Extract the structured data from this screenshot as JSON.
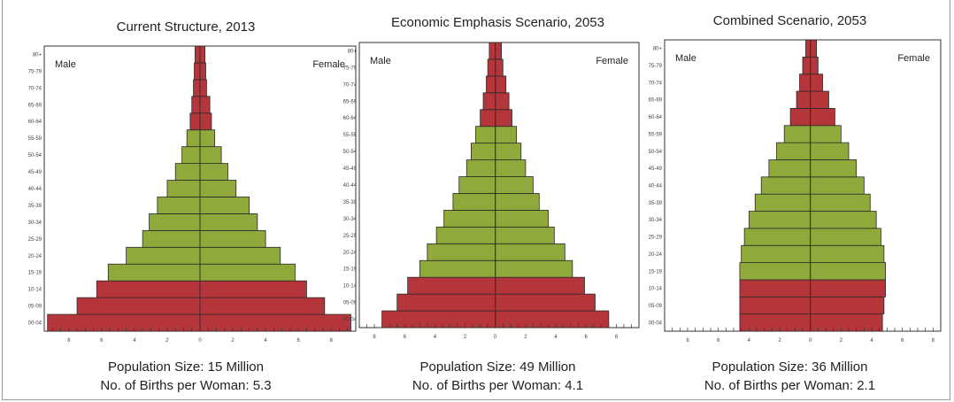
{
  "chart_data": [
    {
      "type": "bar",
      "title": "Current Structure, 2013",
      "left_label": "Male",
      "right_label": "Female",
      "age_groups": [
        "00-04",
        "05-09",
        "10-14",
        "15-19",
        "20-24",
        "25-29",
        "30-34",
        "35-39",
        "40-44",
        "45-49",
        "50-54",
        "55-59",
        "60-64",
        "65-69",
        "70-74",
        "75-79",
        "80+"
      ],
      "series": [
        {
          "name": "Male",
          "values": [
            9.3,
            7.5,
            6.3,
            5.6,
            4.5,
            3.5,
            3.1,
            2.6,
            2.0,
            1.5,
            1.1,
            0.8,
            0.6,
            0.5,
            0.4,
            0.35,
            0.3
          ]
        },
        {
          "name": "Female",
          "values": [
            9.2,
            7.6,
            6.5,
            5.8,
            4.9,
            4.0,
            3.5,
            3.0,
            2.2,
            1.7,
            1.3,
            0.9,
            0.7,
            0.6,
            0.4,
            0.35,
            0.3
          ]
        }
      ],
      "highlight_rows": [
        0,
        1,
        2,
        12,
        13,
        14,
        15,
        16
      ],
      "xticks": [
        "8",
        "6",
        "4",
        "2",
        "0",
        "2",
        "4",
        "6",
        "8"
      ],
      "xlim": [
        -9.5,
        9.5
      ],
      "caption": [
        "Population Size: 15 Million",
        "No. of Births per Woman: 5.3"
      ]
    },
    {
      "type": "bar",
      "title": "Economic Emphasis Scenario, 2053",
      "left_label": "Male",
      "right_label": "Female",
      "age_groups": [
        "00-04",
        "05-09",
        "10-14",
        "15-19",
        "20-24",
        "25-29",
        "30-34",
        "35-39",
        "40-44",
        "45-49",
        "50-54",
        "55-59",
        "60-64",
        "65-69",
        "70-74",
        "75-79",
        "80+"
      ],
      "series": [
        {
          "name": "Male",
          "values": [
            7.5,
            6.5,
            5.8,
            5.0,
            4.5,
            3.9,
            3.4,
            2.8,
            2.4,
            1.9,
            1.6,
            1.3,
            1.0,
            0.8,
            0.6,
            0.5,
            0.4
          ]
        },
        {
          "name": "Female",
          "values": [
            7.5,
            6.6,
            5.9,
            5.1,
            4.6,
            3.9,
            3.5,
            2.9,
            2.5,
            2.0,
            1.7,
            1.4,
            1.1,
            0.9,
            0.7,
            0.5,
            0.4
          ]
        }
      ],
      "highlight_rows": [
        0,
        1,
        2,
        12,
        13,
        14,
        15,
        16
      ],
      "xticks": [
        "8",
        "6",
        "4",
        "2",
        "0",
        "2",
        "4",
        "6",
        "8"
      ],
      "xlim": [
        -9,
        9.5
      ],
      "caption": [
        "Population Size: 49 Million",
        "No. of Births per Woman: 4.1"
      ]
    },
    {
      "type": "bar",
      "title": "Combined Scenario, 2053",
      "left_label": "Male",
      "right_label": "Female",
      "age_groups": [
        "00-04",
        "05-09",
        "10-14",
        "15-19",
        "20-24",
        "25-29",
        "30-34",
        "35-39",
        "40-44",
        "45-49",
        "50-54",
        "55-59",
        "60-64",
        "65-69",
        "70-74",
        "75-79",
        "80+"
      ],
      "series": [
        {
          "name": "Male",
          "values": [
            4.6,
            4.6,
            4.6,
            4.6,
            4.5,
            4.3,
            4.0,
            3.6,
            3.2,
            2.7,
            2.2,
            1.7,
            1.3,
            0.9,
            0.7,
            0.5,
            0.3
          ]
        },
        {
          "name": "Female",
          "values": [
            4.7,
            4.8,
            4.9,
            4.9,
            4.8,
            4.6,
            4.3,
            3.9,
            3.5,
            3.0,
            2.5,
            2.0,
            1.6,
            1.2,
            0.8,
            0.5,
            0.4
          ]
        }
      ],
      "highlight_rows": [
        0,
        1,
        2,
        12,
        13,
        14,
        15,
        16
      ],
      "xticks": [
        "8",
        "6",
        "4",
        "2",
        "0",
        "2",
        "4",
        "6",
        "8"
      ],
      "xlim": [
        -9.5,
        8.5
      ],
      "caption": [
        "Population Size: 36 Million",
        "No. of Births per Woman: 2.1"
      ]
    }
  ],
  "colors": {
    "working_age": "#8faa3a",
    "dependent_age": "#b5363a",
    "bar_stroke": "#2a2a2a",
    "axis": "#333333"
  }
}
